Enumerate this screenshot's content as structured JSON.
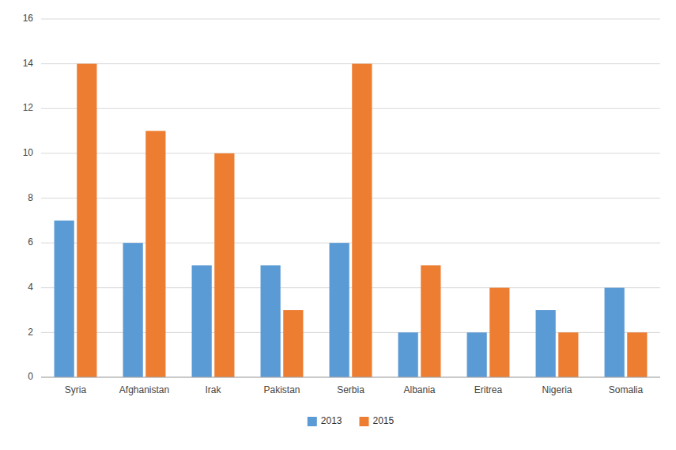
{
  "chart_data": {
    "type": "bar",
    "categories": [
      "Syria",
      "Afghanistan",
      "Irak",
      "Pakistan",
      "Serbia",
      "Albania",
      "Eritrea",
      "Nigeria",
      "Somalia"
    ],
    "series": [
      {
        "name": "2013",
        "color": "#5B9BD5",
        "values": [
          7,
          6,
          5,
          5,
          6,
          2,
          2,
          3,
          4
        ]
      },
      {
        "name": "2015",
        "color": "#ED7D31",
        "values": [
          14,
          11,
          10,
          3,
          14,
          5,
          4,
          2,
          2
        ]
      }
    ],
    "ylim": [
      0,
      16
    ],
    "yticks": [
      0,
      2,
      4,
      6,
      8,
      10,
      12,
      14,
      16
    ],
    "grid": true,
    "legend": "bottom"
  }
}
